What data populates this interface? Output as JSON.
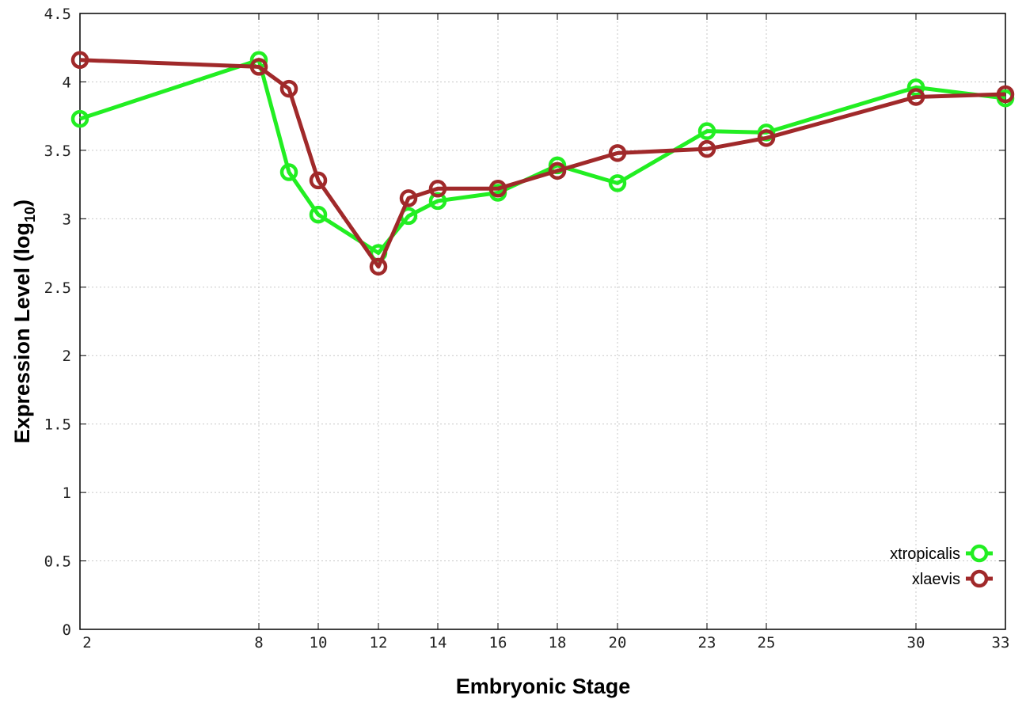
{
  "chart_data": {
    "type": "line",
    "xlabel": "Embryonic Stage",
    "ylabel": "Expression Level (log",
    "ylabel_subscript": "10",
    "ylabel_suffix": ")",
    "ylim": [
      0,
      4.5
    ],
    "y_ticks": [
      "0",
      "0.5",
      "1",
      "1.5",
      "2",
      "2.5",
      "3",
      "3.5",
      "4",
      "4.5"
    ],
    "x_ticks": [
      2,
      8,
      10,
      12,
      14,
      16,
      18,
      20,
      23,
      25,
      30,
      33
    ],
    "x_categories": [
      "2",
      "8",
      "9",
      "10",
      "12",
      "13",
      "14",
      "16",
      "18",
      "20",
      "23",
      "25",
      "30",
      "33"
    ],
    "grid": true,
    "legend_position": "bottom-right",
    "series": [
      {
        "name": "xtropicalis",
        "color": "#22ee22",
        "x": [
          2,
          8,
          9,
          10,
          12,
          13,
          14,
          16,
          18,
          20,
          23,
          25,
          30,
          33
        ],
        "values": [
          3.73,
          4.16,
          3.34,
          3.03,
          2.75,
          3.02,
          3.13,
          3.19,
          3.39,
          3.26,
          3.64,
          3.63,
          3.96,
          3.88
        ]
      },
      {
        "name": "xlaevis",
        "color": "#a0292a",
        "x": [
          2,
          8,
          9,
          10,
          12,
          13,
          14,
          16,
          18,
          20,
          23,
          25,
          30,
          33
        ],
        "values": [
          4.16,
          4.11,
          3.95,
          3.28,
          2.65,
          3.15,
          3.22,
          3.22,
          3.35,
          3.48,
          3.51,
          3.59,
          3.89,
          3.91
        ]
      }
    ]
  }
}
